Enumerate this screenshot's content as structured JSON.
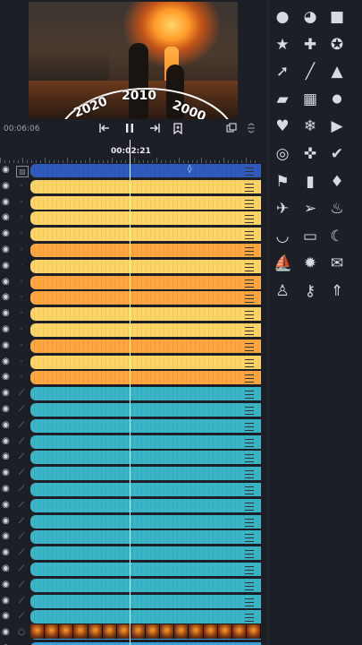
{
  "preview": {
    "years": [
      "2020",
      "2010",
      "2000"
    ]
  },
  "transport": {
    "current_time": "00:06:06",
    "playhead_time": "00:02:21"
  },
  "tracks": [
    {
      "color": "#2f5bbf",
      "icon": "image-icon",
      "diamond": true
    },
    {
      "color": "#ffd466",
      "icon": "dot-icon"
    },
    {
      "color": "#ffd466",
      "icon": "dot-icon"
    },
    {
      "color": "#ffd466",
      "icon": "dot-icon"
    },
    {
      "color": "#ffd466",
      "icon": "dot-icon"
    },
    {
      "color": "#ffa640",
      "icon": "dot-icon"
    },
    {
      "color": "#ffd466",
      "icon": "dot-icon"
    },
    {
      "color": "#ffa640",
      "icon": "dot-icon"
    },
    {
      "color": "#ffa640",
      "icon": "dot-icon"
    },
    {
      "color": "#ffd466",
      "icon": "dot-icon"
    },
    {
      "color": "#ffd466",
      "icon": "dot-icon"
    },
    {
      "color": "#ffa640",
      "icon": "dot-icon"
    },
    {
      "color": "#ffd466",
      "icon": "dot-icon"
    },
    {
      "color": "#ffa640",
      "icon": "dot-icon"
    },
    {
      "color": "#3ab5c8",
      "icon": "line-icon"
    },
    {
      "color": "#3ab5c8",
      "icon": "line-icon"
    },
    {
      "color": "#3ab5c8",
      "icon": "line-icon"
    },
    {
      "color": "#3ab5c8",
      "icon": "line-icon"
    },
    {
      "color": "#3ab5c8",
      "icon": "line-icon"
    },
    {
      "color": "#3ab5c8",
      "icon": "line-icon"
    },
    {
      "color": "#3ab5c8",
      "icon": "line-icon"
    },
    {
      "color": "#3ab5c8",
      "icon": "line-icon"
    },
    {
      "color": "#3ab5c8",
      "icon": "line-icon"
    },
    {
      "color": "#3ab5c8",
      "icon": "line-icon"
    },
    {
      "color": "#3ab5c8",
      "icon": "line-icon"
    },
    {
      "color": "#3ab5c8",
      "icon": "line-icon"
    },
    {
      "color": "#3ab5c8",
      "icon": "line-icon"
    },
    {
      "color": "#3ab5c8",
      "icon": "line-icon"
    },
    {
      "color": "#3ab5c8",
      "icon": "line-icon"
    },
    {
      "color": "#3aa0d8",
      "icon": "circle-icon"
    },
    {
      "color": "#3aa0d8",
      "icon": "circle-icon"
    }
  ],
  "palette_icons": [
    "circle-icon",
    "pie-icon",
    "square-icon",
    "partial-icon",
    "star-icon",
    "plus-icon",
    "star-badge-icon",
    "partial-icon",
    "arrow-icon",
    "line-icon",
    "triangle-icon",
    "partial-icon",
    "speech-bubble-icon",
    "stamp-icon",
    "drop-icon",
    "partial-icon",
    "heart-icon",
    "snowflake-icon",
    "play-icon",
    "partial-icon",
    "spiral-icon",
    "puzzle-icon",
    "check-icon",
    "partial-icon",
    "flag-icon",
    "bookmark-icon",
    "diamond-icon",
    "partial-icon",
    "airplane-icon",
    "paper-plane-icon",
    "flame-icon",
    "partial-icon",
    "smile-arc-icon",
    "banner-icon",
    "moon-icon",
    "partial-icon",
    "sailboat-icon",
    "sun-icon",
    "envelope-icon",
    "partial-icon",
    "person-icon",
    "key-icon",
    "rocket-icon",
    "partial-icon"
  ]
}
